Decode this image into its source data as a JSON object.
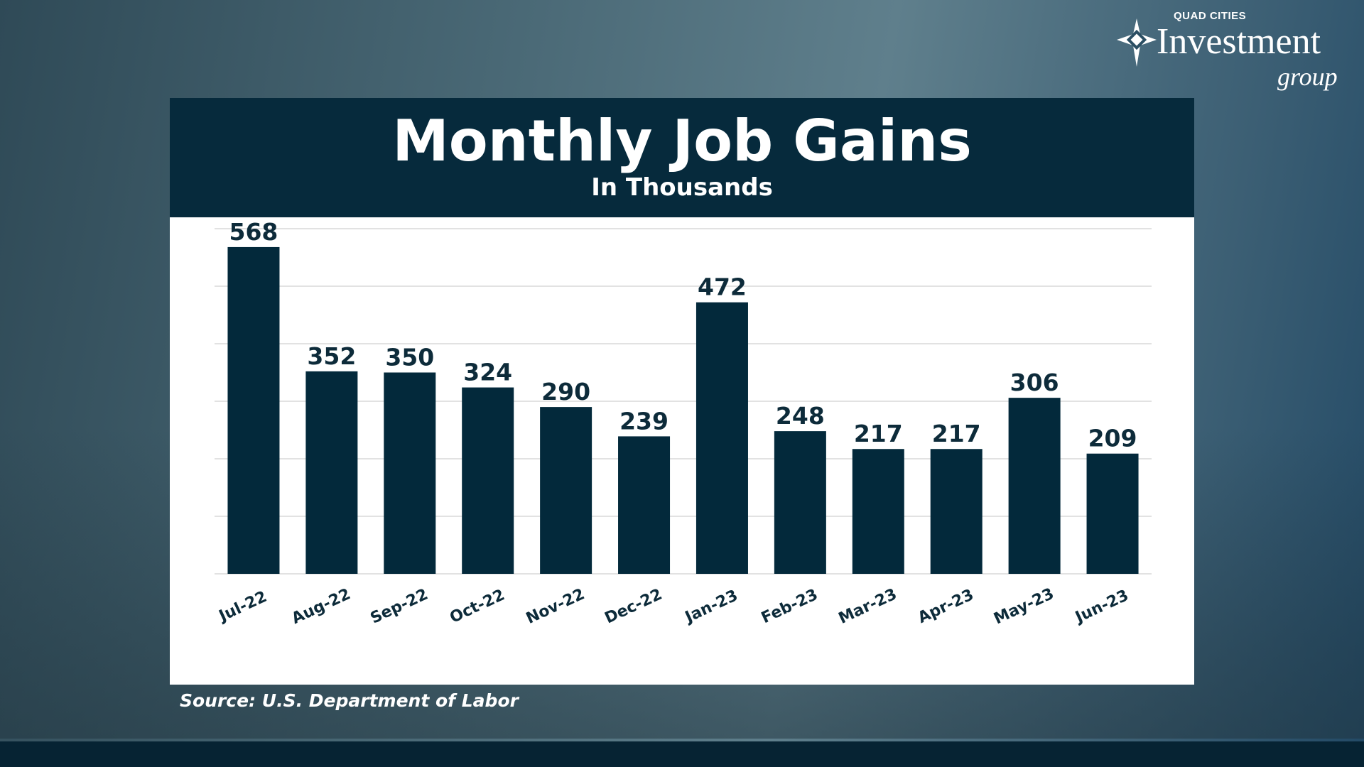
{
  "logo": {
    "line1": "QUAD CITIES",
    "line2": "Investment",
    "line3": "group"
  },
  "source": "Source: U.S. Department of Labor",
  "colors": {
    "bar": "#03293b",
    "header": "#062a3c",
    "grid": "#d9d9d9",
    "label": "#0d2b3a"
  },
  "chart_data": {
    "type": "bar",
    "title": "Monthly Job Gains",
    "subtitle": "In Thousands",
    "categories": [
      "Jul-22",
      "Aug-22",
      "Sep-22",
      "Oct-22",
      "Nov-22",
      "Dec-22",
      "Jan-23",
      "Feb-23",
      "Mar-23",
      "Apr-23",
      "May-23",
      "Jun-23"
    ],
    "values": [
      568,
      352,
      350,
      324,
      290,
      239,
      472,
      248,
      217,
      217,
      306,
      209
    ],
    "ylim": [
      0,
      600
    ],
    "grid": true,
    "grid_step": 100,
    "data_labels": true
  }
}
